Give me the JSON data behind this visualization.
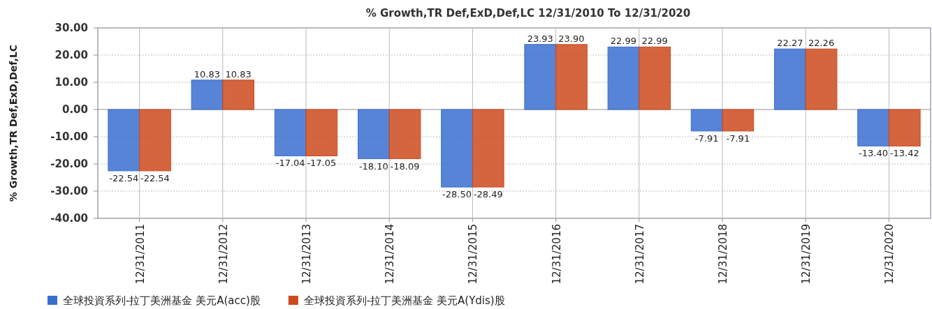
{
  "chart_data": {
    "type": "bar",
    "title": "% Growth,TR Def,ExD,Def,LC 12/31/2010 To 12/31/2020",
    "ylabel": "% Growth,TR Def,ExD,Def,LC",
    "categories": [
      "12/31/2011",
      "12/31/2012",
      "12/31/2013",
      "12/31/2014",
      "12/31/2015",
      "12/31/2016",
      "12/31/2017",
      "12/31/2018",
      "12/31/2019",
      "12/31/2020"
    ],
    "series": [
      {
        "name": "全球投資系列-拉丁美洲基金 美元A(acc)股",
        "color": "#3a6fd0",
        "values": [
          -22.54,
          10.83,
          -17.04,
          -18.1,
          -28.5,
          23.93,
          22.99,
          -7.91,
          22.27,
          -13.4
        ],
        "value_labels": [
          "-22.54",
          "10.83",
          "-17.04",
          "-18.10",
          "-28.50",
          "23.93",
          "22.99",
          "-7.91",
          "22.27",
          "-13.40"
        ]
      },
      {
        "name": "全球投資系列-拉丁美洲基金 美元A(Ydis)股",
        "color": "#cc4a1c",
        "values": [
          -22.54,
          10.83,
          -17.05,
          -18.09,
          -28.49,
          23.9,
          22.99,
          -7.91,
          22.26,
          -13.42
        ],
        "value_labels": [
          "-22.54",
          "10.83",
          "-17.05",
          "-18.09",
          "-28.49",
          "23.90",
          "22.99",
          "-7.91",
          "22.26",
          "-13.42"
        ]
      }
    ],
    "ylim": [
      -40,
      30
    ],
    "yticks": [
      {
        "value": -40,
        "label": "-40.00"
      },
      {
        "value": -30,
        "label": "-30.00"
      },
      {
        "value": -20,
        "label": "-20.00"
      },
      {
        "value": -10,
        "label": "-10.00"
      },
      {
        "value": 0,
        "label": "0.00"
      },
      {
        "value": 10,
        "label": "10.00"
      },
      {
        "value": 20,
        "label": "20.00"
      },
      {
        "value": 30,
        "label": "30.00"
      }
    ],
    "grid": true,
    "legend": "bottom"
  }
}
